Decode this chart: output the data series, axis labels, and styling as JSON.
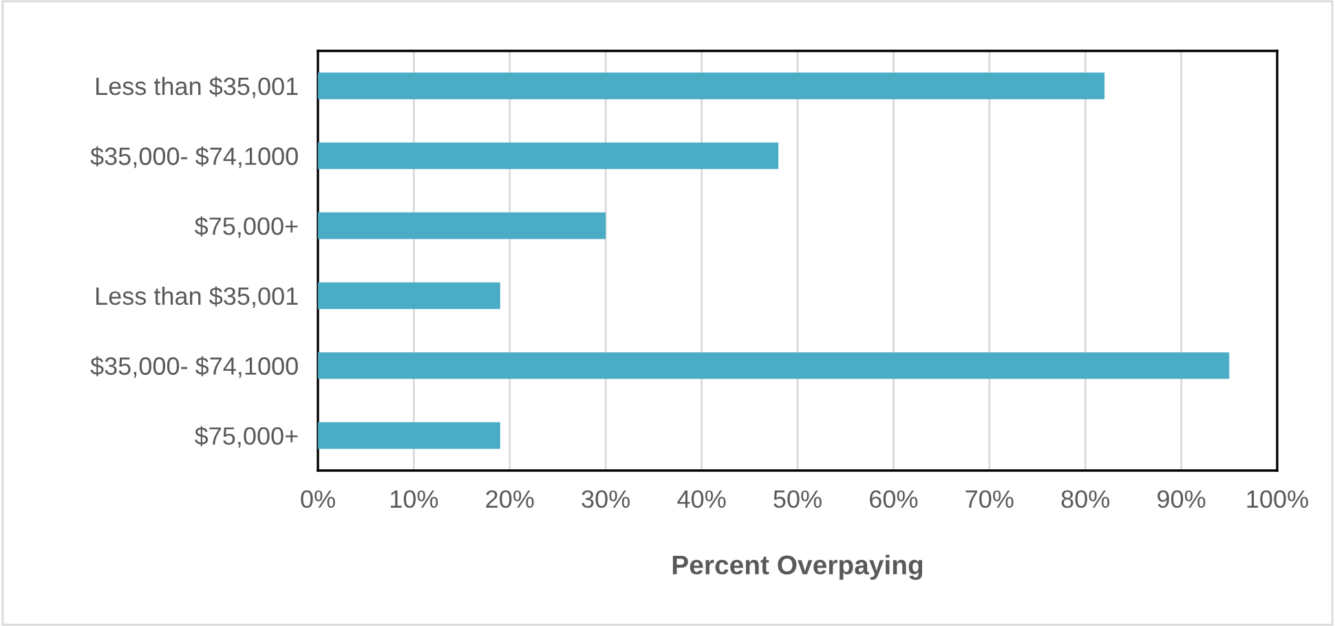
{
  "chart_data": {
    "type": "bar",
    "orientation": "horizontal",
    "xlabel": "Percent Overpaying",
    "categories": [
      "Less than $35,001",
      "$35,000- $74,1000",
      "$75,000+",
      "Less than $35,001",
      "$35,000- $74,1000",
      "$75,000+"
    ],
    "values": [
      82,
      48,
      30,
      19,
      95,
      19
    ],
    "color": "#4bacc6",
    "xlim": [
      0,
      100
    ],
    "xticks": [
      {
        "value": 0,
        "label": "0%"
      },
      {
        "value": 10,
        "label": "10%"
      },
      {
        "value": 20,
        "label": "20%"
      },
      {
        "value": 30,
        "label": "30%"
      },
      {
        "value": 40,
        "label": "40%"
      },
      {
        "value": 50,
        "label": "50%"
      },
      {
        "value": 60,
        "label": "60%"
      },
      {
        "value": 70,
        "label": "70%"
      },
      {
        "value": 80,
        "label": "80%"
      },
      {
        "value": 90,
        "label": "90%"
      },
      {
        "value": 100,
        "label": "100%"
      }
    ],
    "grid": "x",
    "legend": false
  }
}
